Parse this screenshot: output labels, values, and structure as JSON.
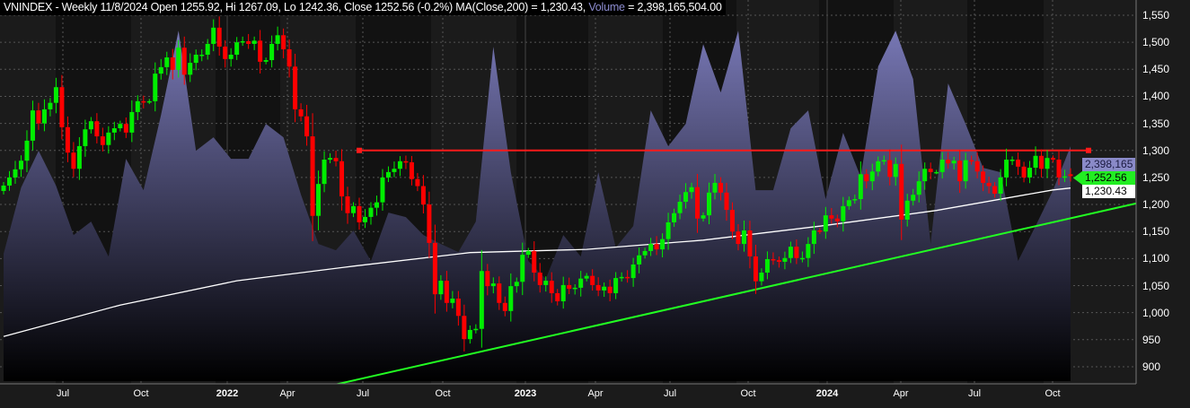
{
  "header": {
    "text": "VNINDEX - Weekly 11/8/2024 Open 1255.92, Hi 1267.09, Lo 1242.36, Close 1252.56 (-0.2%) MA(Close,200) = 1,230.43, ",
    "volume_label": "Volume",
    "volume_value": " = 2,398,165,504.00"
  },
  "right_tags": {
    "volume": "2,398,165",
    "close": "1,252.56",
    "ma": "1,230.43"
  },
  "colors": {
    "up": "#00ee00",
    "down": "#ff0000",
    "ma": "#ffffff",
    "resistance": "#ff1a1a",
    "trendline": "#22ff22",
    "volume_top": "#7c7cbc",
    "volume_bottom": "#000000",
    "close_tag": "#22ee22",
    "volume_tag": "#8a8ac8"
  },
  "chart_data": {
    "type": "candlestick",
    "symbol": "VNINDEX",
    "interval": "Weekly",
    "ylim": [
      880,
      1570
    ],
    "yticks": [
      "1,550",
      "1,500",
      "1,450",
      "1,400",
      "1,350",
      "1,300",
      "1,250",
      "1,200",
      "1,150",
      "1,100",
      "1,050",
      "1,000",
      "950",
      "900"
    ],
    "xticks": [
      {
        "label": "Jul",
        "year": false
      },
      {
        "label": "Oct",
        "year": false
      },
      {
        "label": "2022",
        "year": true
      },
      {
        "label": "Apr",
        "year": false
      },
      {
        "label": "Jul",
        "year": false
      },
      {
        "label": "Oct",
        "year": false
      },
      {
        "label": "2023",
        "year": true
      },
      {
        "label": "Apr",
        "year": false
      },
      {
        "label": "Jul",
        "year": false
      },
      {
        "label": "Oct",
        "year": false
      },
      {
        "label": "2024",
        "year": true
      },
      {
        "label": "Apr",
        "year": false
      },
      {
        "label": "Jul",
        "year": false
      },
      {
        "label": "Oct",
        "year": false
      }
    ],
    "last_candle": {
      "date": "11/8/2024",
      "open": 1255.92,
      "high": 1267.09,
      "low": 1242.36,
      "close": 1252.56
    },
    "closes": [
      1235,
      1250,
      1265,
      1281,
      1318,
      1374,
      1350,
      1376,
      1388,
      1417,
      1343,
      1296,
      1266,
      1308,
      1339,
      1354,
      1326,
      1310,
      1333,
      1341,
      1349,
      1333,
      1371,
      1391,
      1390,
      1391,
      1442,
      1454,
      1472,
      1449,
      1490,
      1440,
      1462,
      1477,
      1477,
      1497,
      1527,
      1492,
      1469,
      1477,
      1500,
      1502,
      1497,
      1503,
      1464,
      1467,
      1497,
      1513,
      1487,
      1455,
      1376,
      1363,
      1326,
      1179,
      1238,
      1283,
      1286,
      1280,
      1215,
      1184,
      1197,
      1167,
      1177,
      1194,
      1204,
      1250,
      1260,
      1266,
      1280,
      1278,
      1247,
      1234,
      1200,
      1129,
      1034,
      1059,
      1018,
      1026,
      994,
      951,
      968,
      970,
      1077,
      1049,
      1054,
      1018,
      1003,
      1049,
      1057,
      1107,
      1114,
      1074,
      1051,
      1059,
      1036,
      1021,
      1051,
      1044,
      1046,
      1063,
      1068,
      1051,
      1041,
      1048,
      1036,
      1064,
      1066,
      1064,
      1089,
      1106,
      1114,
      1127,
      1117,
      1136,
      1167,
      1184,
      1205,
      1223,
      1232,
      1174,
      1180,
      1222,
      1240,
      1222,
      1190,
      1150,
      1127,
      1152,
      1104,
      1058,
      1074,
      1099,
      1097,
      1094,
      1101,
      1122,
      1101,
      1101,
      1127,
      1152,
      1150,
      1180,
      1174,
      1169,
      1197,
      1208,
      1210,
      1256,
      1243,
      1261,
      1280,
      1282,
      1251,
      1275,
      1172,
      1207,
      1218,
      1243,
      1266,
      1260,
      1260,
      1283,
      1276,
      1281,
      1243,
      1282,
      1280,
      1261,
      1240,
      1234,
      1220,
      1250,
      1283,
      1283,
      1270,
      1250,
      1268,
      1290,
      1266,
      1286,
      1283,
      1250,
      1252,
      1252.56
    ],
    "ma200_samples_every_20_weeks": [
      956,
      1014,
      1059,
      1086,
      1111,
      1117,
      1134,
      1160,
      1189,
      1227
    ],
    "ma200_last": 1230.43,
    "volume_billions_every_3_weeks": [
      1.42,
      2.16,
      2.57,
      2.18,
      1.63,
      1.78,
      1.39,
      2.48,
      2.13,
      2.97,
      3.91,
      2.57,
      2.72,
      2.48,
      2.48,
      2.87,
      2.72,
      2.08,
      1.53,
      1.46,
      1.68,
      1.34,
      1.88,
      1.83,
      1.63,
      1.53,
      1.44,
      1.78,
      3.73,
      2.33,
      1.34,
      1.14,
      1.63,
      1.39,
      2.33,
      1.49,
      1.73,
      3.02,
      2.62,
      2.87,
      3.76,
      3.22,
      3.91,
      2.13,
      2.13,
      2.82,
      3.02,
      2.03,
      2.77,
      2.28,
      3.51,
      3.91,
      3.37,
      1.53,
      3.32,
      2.87,
      2.38,
      2.33,
      1.34,
      1.73,
      2.13,
      2.62,
      1.78
    ],
    "resistance_level": 1300,
    "trendline": {
      "start": 865,
      "end": 1202
    }
  }
}
